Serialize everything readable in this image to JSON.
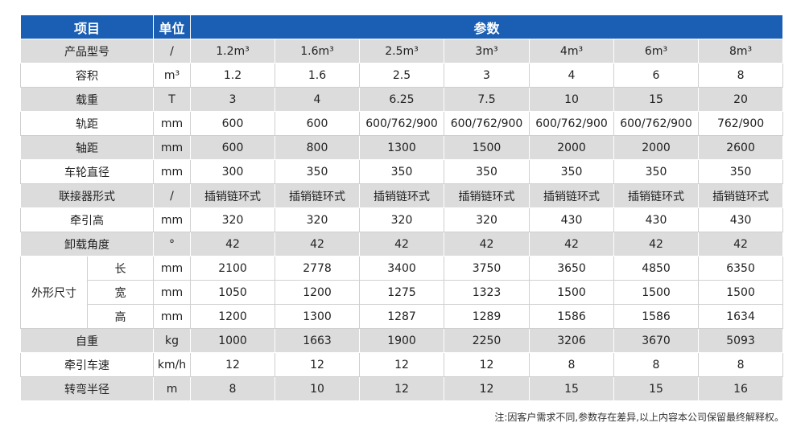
{
  "table": {
    "header": [
      "项目",
      "单位",
      "参数"
    ],
    "rows": [
      {
        "label": "产品型号",
        "unit": "/",
        "values": [
          "1.2m³",
          "1.6m³",
          "2.5m³",
          "3m³",
          "4m³",
          "6m³",
          "8m³"
        ]
      },
      {
        "label": "容积",
        "unit": "m³",
        "values": [
          "1.2",
          "1.6",
          "2.5",
          "3",
          "4",
          "6",
          "8"
        ]
      },
      {
        "label": "载重",
        "unit": "T",
        "values": [
          "3",
          "4",
          "6.25",
          "7.5",
          "10",
          "15",
          "20"
        ]
      },
      {
        "label": "轨距",
        "unit": "mm",
        "values": [
          "600",
          "600",
          "600/762/900",
          "600/762/900",
          "600/762/900",
          "600/762/900",
          "762/900"
        ]
      },
      {
        "label": "轴距",
        "unit": "mm",
        "values": [
          "600",
          "800",
          "1300",
          "1500",
          "2000",
          "2000",
          "2600"
        ]
      },
      {
        "label": "车轮直径",
        "unit": "mm",
        "values": [
          "300",
          "350",
          "350",
          "350",
          "350",
          "350",
          "350"
        ]
      },
      {
        "label": "联接器形式",
        "unit": "/",
        "values": [
          "插销链环式",
          "插销链环式",
          "插销链环式",
          "插销链环式",
          "插销链环式",
          "插销链环式",
          "插销链环式"
        ]
      },
      {
        "label": "牵引高",
        "unit": "mm",
        "values": [
          "320",
          "320",
          "320",
          "320",
          "430",
          "430",
          "430"
        ]
      },
      {
        "label": "卸载角度",
        "unit": "°",
        "values": [
          "42",
          "42",
          "42",
          "42",
          "42",
          "42",
          "42"
        ]
      },
      {
        "group": "外形尺寸",
        "rows": [
          {
            "label": "长",
            "unit": "mm",
            "values": [
              "2100",
              "2778",
              "3400",
              "3750",
              "3650",
              "4850",
              "6350"
            ]
          },
          {
            "label": "宽",
            "unit": "mm",
            "values": [
              "1050",
              "1200",
              "1275",
              "1323",
              "1500",
              "1500",
              "1500"
            ]
          },
          {
            "label": "高",
            "unit": "mm",
            "values": [
              "1200",
              "1300",
              "1287",
              "1289",
              "1586",
              "1586",
              "1634"
            ]
          }
        ]
      },
      {
        "label": "自重",
        "unit": "kg",
        "values": [
          "1000",
          "1663",
          "1900",
          "2250",
          "3206",
          "3670",
          "5093"
        ]
      },
      {
        "label": "牵引车速",
        "unit": "km/h",
        "values": [
          "12",
          "12",
          "12",
          "12",
          "8",
          "8",
          "8"
        ]
      },
      {
        "label": "转弯半径",
        "unit": "m",
        "values": [
          "8",
          "10",
          "12",
          "12",
          "15",
          "15",
          "16"
        ]
      }
    ]
  },
  "note": "注:因客户需求不同,参数存在差异,以上内容本公司保留最终解释权。"
}
